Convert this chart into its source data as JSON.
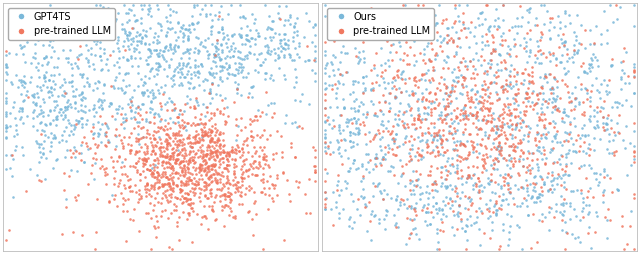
{
  "legend_label_left": "GPT4TS",
  "legend_label_right": "Ours",
  "legend_label_2": "pre-trained LLM",
  "blue_color": "#7ab8d9",
  "red_color": "#f07860",
  "bg_color": "#ffffff",
  "fig_width": 6.4,
  "fig_height": 2.54,
  "dpi": 100,
  "marker_size": 3.5,
  "marker_alpha": 0.85
}
